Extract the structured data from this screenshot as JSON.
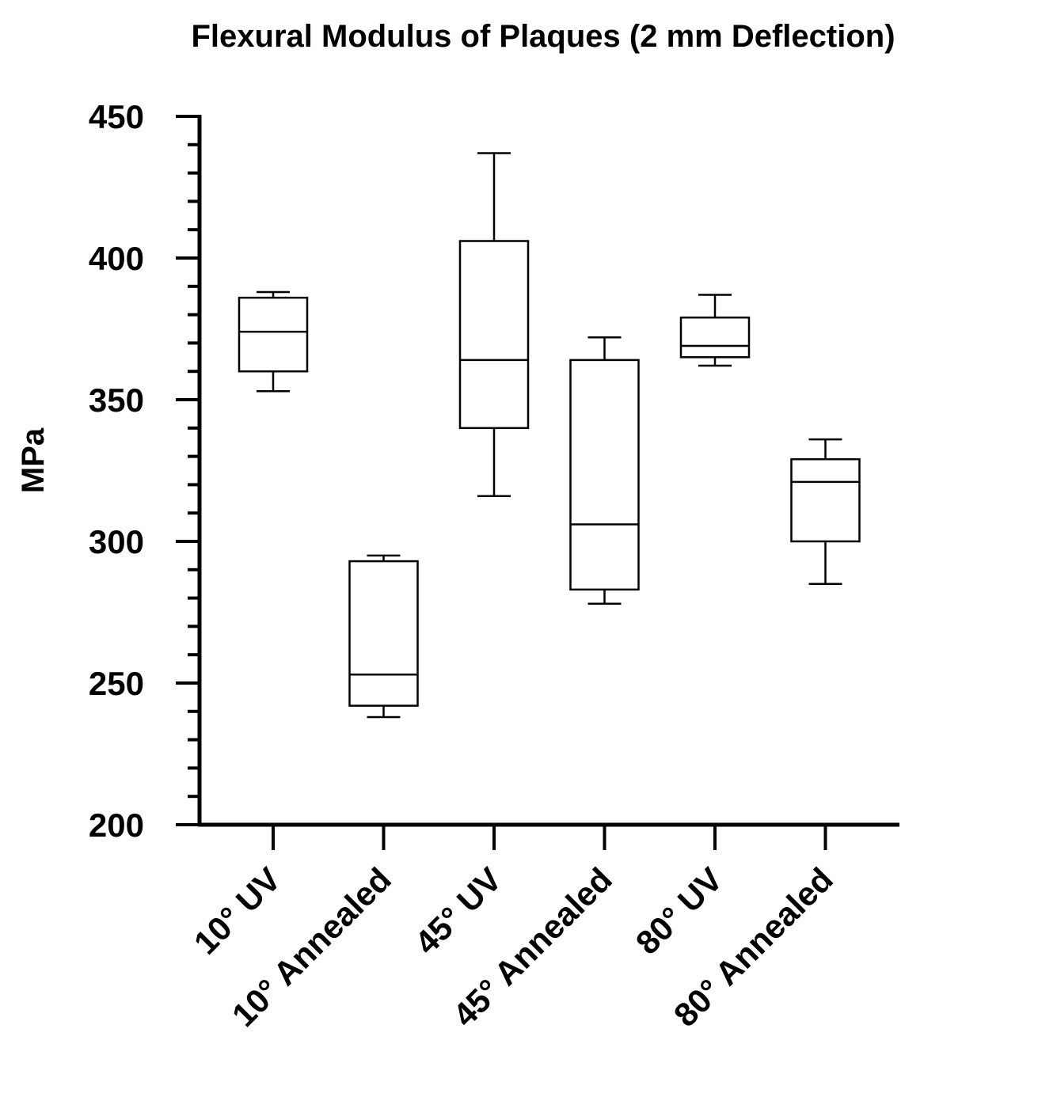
{
  "chart_data": {
    "type": "box",
    "title": "Flexural Modulus of Plaques (2 mm Deflection)",
    "xlabel": "",
    "ylabel": "MPa",
    "ylim": [
      200,
      450
    ],
    "yticks": [
      "200",
      "250",
      "300",
      "350",
      "400",
      "450"
    ],
    "minor_ticks_per_major": 4,
    "grid": false,
    "line_color": "#000000",
    "categories": [
      "10° UV",
      "10° Annealed",
      "45° UV",
      "45° Annealed",
      "80° UV",
      "80° Annealed"
    ],
    "boxes": [
      {
        "min": 353,
        "q1": 360,
        "median": 374,
        "q3": 386,
        "max": 388
      },
      {
        "min": 238,
        "q1": 242,
        "median": 253,
        "q3": 293,
        "max": 295
      },
      {
        "min": 316,
        "q1": 340,
        "median": 364,
        "q3": 406,
        "max": 437
      },
      {
        "min": 278,
        "q1": 283,
        "median": 306,
        "q3": 364,
        "max": 372
      },
      {
        "min": 362,
        "q1": 365,
        "median": 369,
        "q3": 379,
        "max": 387
      },
      {
        "min": 285,
        "q1": 300,
        "median": 321,
        "q3": 329,
        "max": 336
      }
    ]
  }
}
